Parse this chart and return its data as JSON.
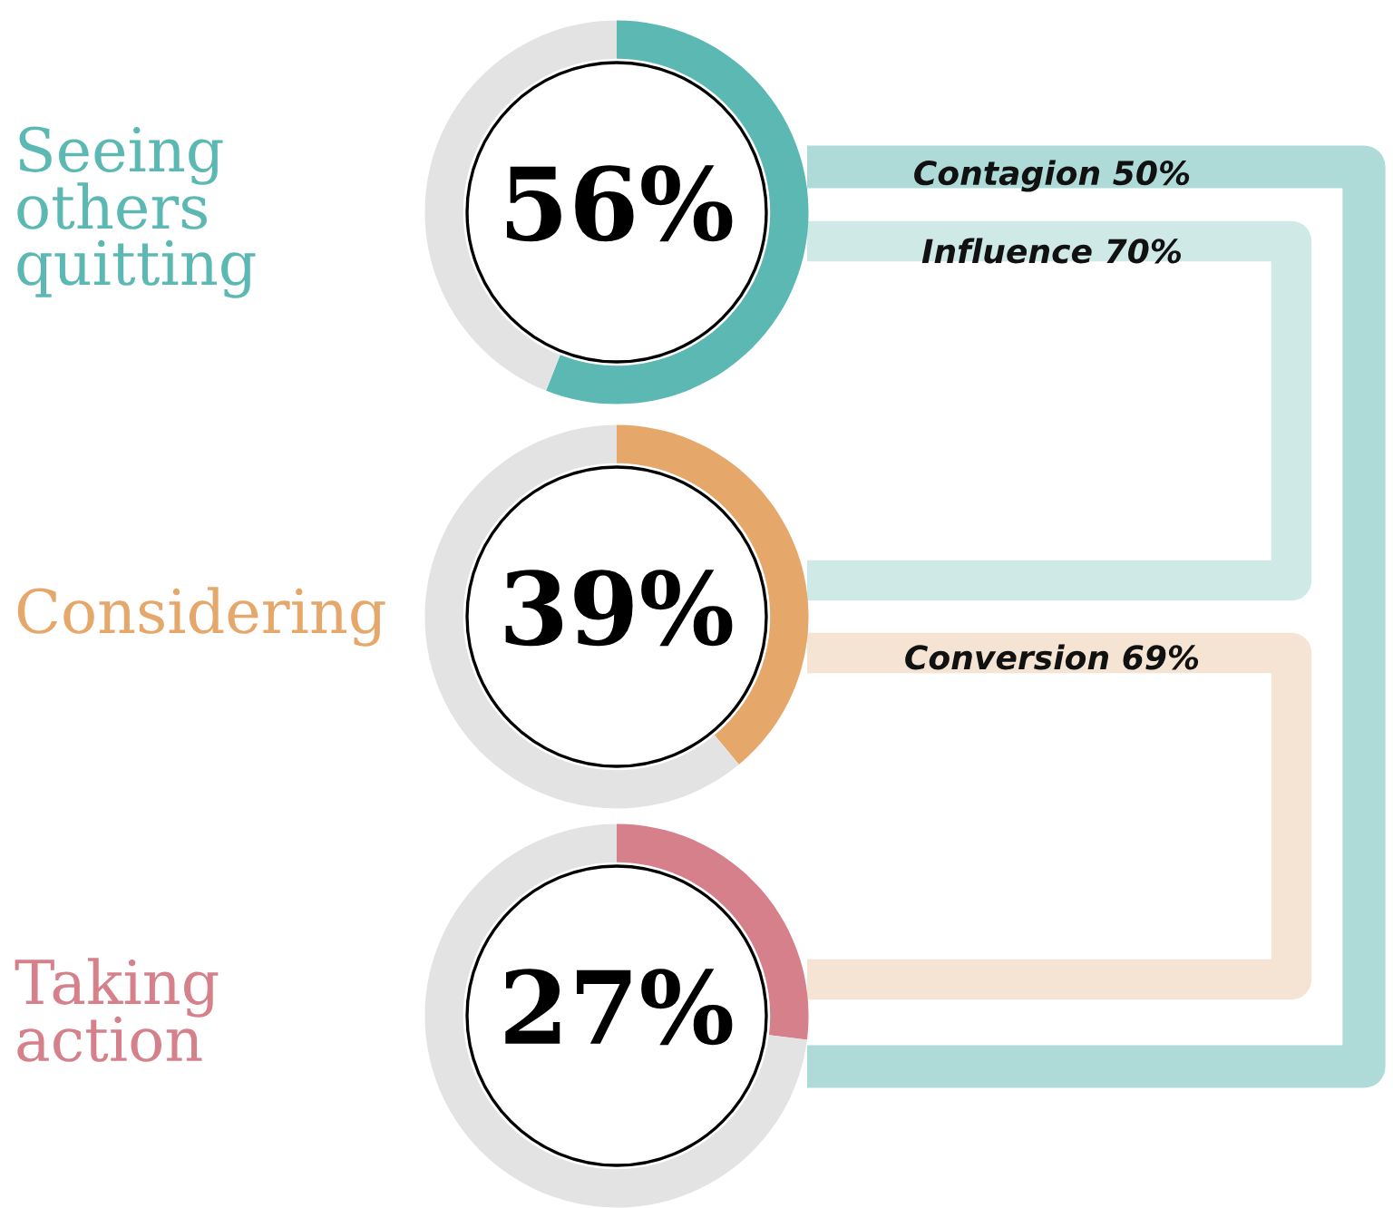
{
  "chart_data": [
    {
      "type": "other",
      "annotations": [
        "Contagion 50%",
        "Influence 70%",
        "Conversion 69%"
      ]
    },
    {
      "type": "donut",
      "title": "Seeing\nothers\nquitting",
      "categories": [
        null,
        null
      ],
      "values": [
        56,
        44
      ],
      "colors": [
        "#5cb8b2",
        "#e3e3e3"
      ],
      "value_labels": [
        "56%",
        null
      ]
    },
    {
      "type": "donut",
      "title": "Considering",
      "categories": [
        null,
        null
      ],
      "values": [
        39,
        61
      ],
      "colors": [
        "#e5a76a",
        "#e3e3e3"
      ],
      "value_labels": [
        "39%",
        null
      ]
    },
    {
      "type": "donut",
      "title": "Taking\naction",
      "categories": [
        null,
        null
      ],
      "values": [
        27,
        73
      ],
      "colors": [
        "#d5808a",
        "#e3e3e3"
      ],
      "value_labels": [
        "27%",
        null
      ]
    }
  ]
}
